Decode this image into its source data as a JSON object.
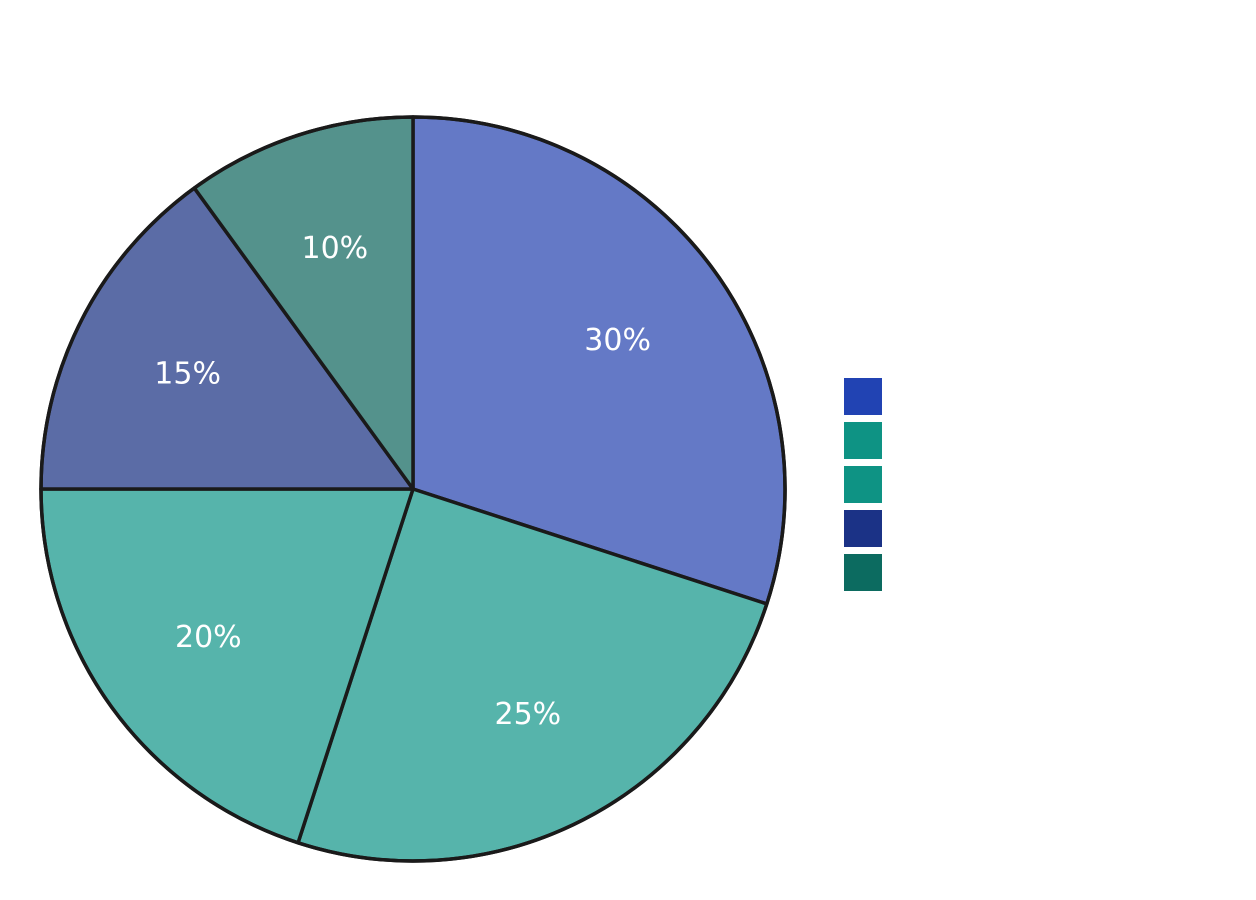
{
  "chart_data": {
    "type": "pie",
    "start_angle_deg": 90,
    "direction": "clockwise",
    "slices": [
      {
        "value": 30,
        "label": "30%",
        "color": "#6479c6"
      },
      {
        "value": 25,
        "label": "25%",
        "color": "#56b4ab"
      },
      {
        "value": 20,
        "label": "20%",
        "color": "#56b4ab"
      },
      {
        "value": 15,
        "label": "15%",
        "color": "#5b6ca6"
      },
      {
        "value": 10,
        "label": "10%",
        "color": "#54928c"
      }
    ],
    "legend": {
      "position": "right",
      "swatch_colors": [
        "#2143b3",
        "#0e9384",
        "#0e9384",
        "#1b3286",
        "#0c6b60"
      ]
    }
  }
}
